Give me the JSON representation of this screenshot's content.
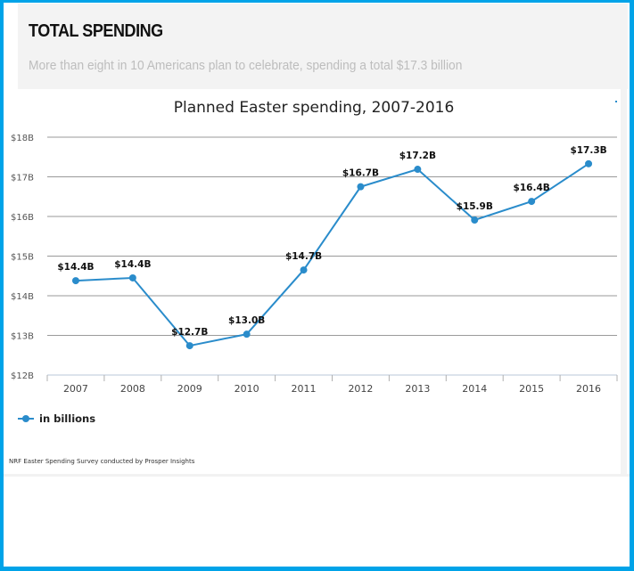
{
  "header": {
    "title": "TOTAL SPENDING",
    "subtitle": "More than eight in 10 Americans plan to celebrate, spending a total $17.3 billion"
  },
  "legend": {
    "label": "in billions",
    "icon": "line-marker-icon"
  },
  "source": "NRF Easter Spending Survey conducted by Prosper Insights",
  "colors": {
    "series": "#2a8ccb",
    "frame": "#00a3e8",
    "grid": "#999999",
    "header_bg": "#f3f3f3"
  },
  "chart_data": {
    "type": "line",
    "title": "Planned Easter spending, 2007-2016",
    "xlabel": "",
    "ylabel": "",
    "categories": [
      "2007",
      "2008",
      "2009",
      "2010",
      "2011",
      "2012",
      "2013",
      "2014",
      "2015",
      "2016"
    ],
    "series": [
      {
        "name": "in billions",
        "values": [
          14.38,
          14.45,
          12.74,
          13.03,
          14.65,
          16.75,
          17.19,
          15.91,
          16.38,
          17.33
        ],
        "data_labels": [
          "$14.4B",
          "$14.4B",
          "$12.7B",
          "$13.0B",
          "$14.7B",
          "$16.7B",
          "$17.2B",
          "$15.9B",
          "$16.4B",
          "$17.3B"
        ]
      }
    ],
    "ylim": [
      12,
      18
    ],
    "yticks": [
      12,
      13,
      14,
      15,
      16,
      17,
      18
    ],
    "ytick_labels": [
      "$12B",
      "$13B",
      "$14B",
      "$15B",
      "$16B",
      "$17B",
      "$18B"
    ],
    "grid": true,
    "legend_position": "bottom-left"
  }
}
